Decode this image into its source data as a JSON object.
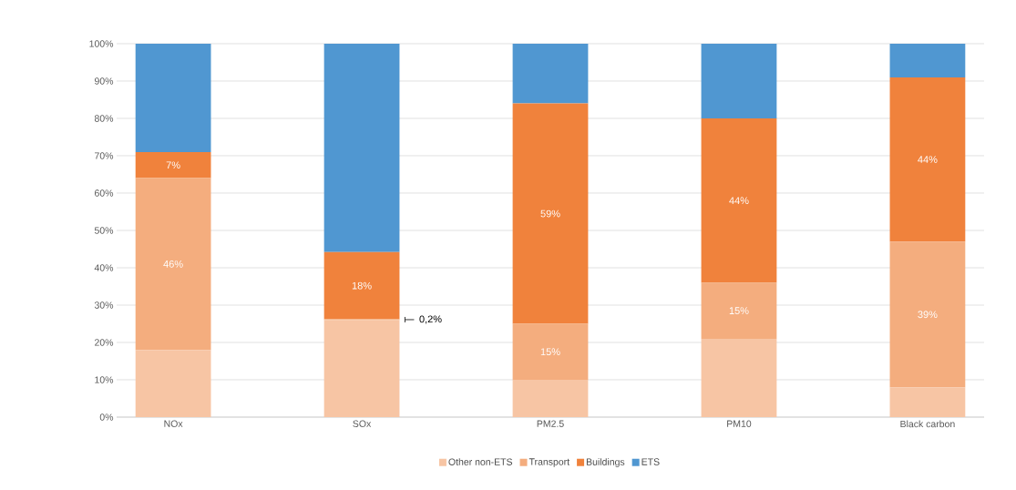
{
  "chart_data": {
    "type": "bar",
    "stacked": true,
    "categories": [
      "NOx",
      "SOx",
      "PM2.5",
      "PM10",
      "Black carbon"
    ],
    "series": [
      {
        "name": "Other non-ETS",
        "color": "#f7c5a4",
        "values": [
          18,
          26,
          10,
          21,
          8
        ]
      },
      {
        "name": "Transport",
        "color": "#f4ad7e",
        "values": [
          46,
          0.2,
          15,
          15,
          39
        ],
        "value_labels": [
          "46%",
          "0,2%",
          "15%",
          "15%",
          "39%"
        ]
      },
      {
        "name": "Buildings",
        "color": "#f0823c",
        "values": [
          7,
          18,
          59,
          44,
          44
        ],
        "value_labels": [
          "7%",
          "18%",
          "59%",
          "44%",
          "44%"
        ]
      },
      {
        "name": "ETS",
        "color": "#5097d1",
        "values": [
          29,
          55.8,
          16,
          20,
          9
        ]
      }
    ],
    "ylim": [
      0,
      100
    ],
    "yticks": [
      {
        "value": 0,
        "label": "0%"
      },
      {
        "value": 10,
        "label": "10%"
      },
      {
        "value": 20,
        "label": "20%"
      },
      {
        "value": 30,
        "label": "30%"
      },
      {
        "value": 40,
        "label": "40%"
      },
      {
        "value": 50,
        "label": "50%"
      },
      {
        "value": 60,
        "label": "60%"
      },
      {
        "value": 70,
        "label": "70%"
      },
      {
        "value": 80,
        "label": "80%"
      },
      {
        "value": 90,
        "label": "90%"
      },
      {
        "value": 100,
        "label": "100%"
      }
    ],
    "grid": "y",
    "legend": "bottom"
  }
}
